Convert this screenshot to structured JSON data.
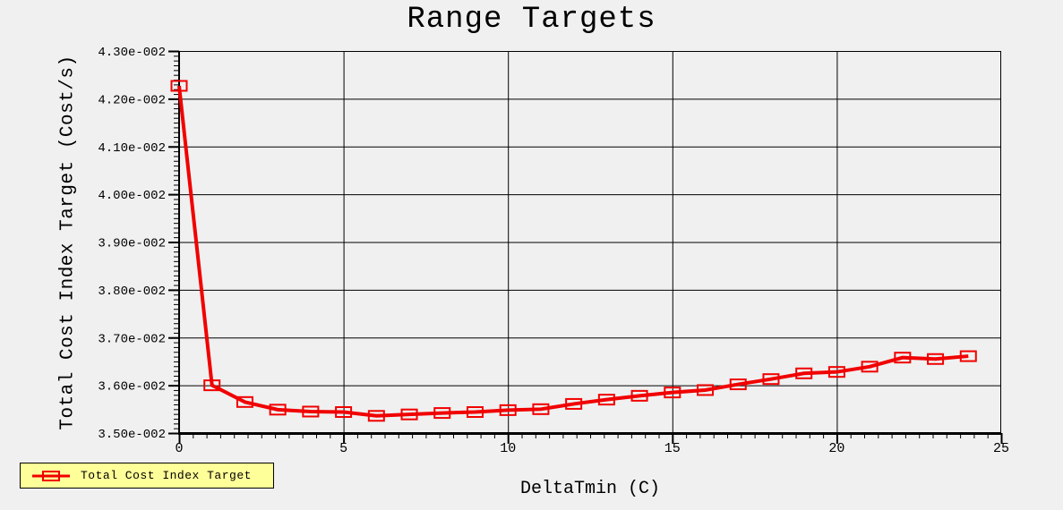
{
  "window": {
    "background_color": "#f0f0f0",
    "text_color": "#000000"
  },
  "chart_data": {
    "type": "line",
    "title": "Range Targets",
    "xlabel": "DeltaTmin (C)",
    "ylabel": "Total Cost Index Target (Cost/s)",
    "grid": true,
    "xlim": [
      0,
      25
    ],
    "ylim": [
      0.035,
      0.043
    ],
    "x_major_ticks": [
      0,
      5,
      10,
      15,
      20,
      25
    ],
    "x_tick_labels": [
      "0",
      "5",
      "10",
      "15",
      "20",
      "25"
    ],
    "y_major_ticks": [
      0.043,
      0.042,
      0.041,
      0.04,
      0.039,
      0.038,
      0.037,
      0.036,
      0.035
    ],
    "y_tick_labels": [
      "4.30e-002",
      "4.20e-002",
      "4.10e-002",
      "4.00e-002",
      "3.90e-002",
      "3.80e-002",
      "3.70e-002",
      "3.60e-002",
      "3.50e-002"
    ],
    "x_minor_divisions_per_major": 12,
    "y_minor_divisions_per_major": 10,
    "series": [
      {
        "name": "Total Cost Index Target",
        "color": "#f10000",
        "marker": "open-square",
        "x": [
          0,
          1,
          2,
          3,
          4,
          5,
          6,
          7,
          8,
          9,
          10,
          11,
          12,
          13,
          14,
          15,
          16,
          17,
          18,
          19,
          20,
          21,
          22,
          23,
          24
        ],
        "y": [
          0.04227,
          0.036,
          0.03565,
          0.03549,
          0.03545,
          0.03544,
          0.03536,
          0.03539,
          0.03542,
          0.03544,
          0.03548,
          0.0355,
          0.03561,
          0.0357,
          0.03578,
          0.03585,
          0.0359,
          0.03602,
          0.03613,
          0.03625,
          0.03628,
          0.03639,
          0.03658,
          0.03655,
          0.03661
        ]
      }
    ],
    "legend": {
      "label": "Total Cost Index Target",
      "background_color": "#ffff99",
      "border_color": "#000000",
      "position": "bottom-left"
    }
  }
}
